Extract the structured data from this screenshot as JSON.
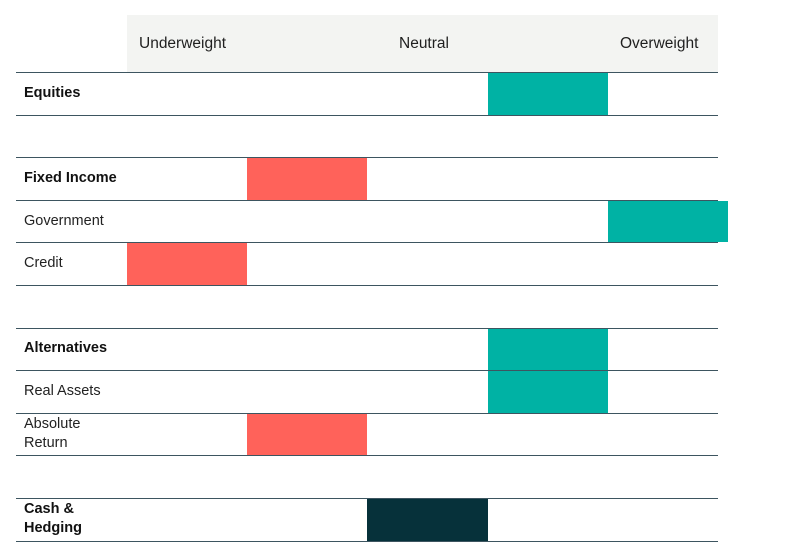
{
  "chart_data": {
    "type": "table",
    "title": "",
    "scale": [
      "Underweight",
      "",
      "",
      "Neutral",
      "",
      "Overweight"
    ],
    "header_labels": [
      {
        "text": "Underweight",
        "position": 1
      },
      {
        "text": "Neutral",
        "position": 3
      },
      {
        "text": "Overweight",
        "position": 5
      }
    ],
    "colors": {
      "underweight": "#ff625a",
      "overweight": "#00b2a4",
      "neutral": "#06313a",
      "header_bg": "#f3f4f2",
      "rule": "#3d5560"
    },
    "rows": [
      {
        "label": "Equities",
        "bold": true,
        "level": 4,
        "color": "overweight"
      },
      {
        "label": "",
        "spacer": true
      },
      {
        "label": "Fixed Income",
        "bold": true,
        "level": 2,
        "color": "underweight"
      },
      {
        "label": "Government",
        "bold": false,
        "level": 5,
        "color": "overweight"
      },
      {
        "label": "Credit",
        "bold": false,
        "level": 1,
        "color": "underweight"
      },
      {
        "label": "",
        "spacer": true
      },
      {
        "label": "Alternatives",
        "bold": true,
        "level": 4,
        "color": "overweight"
      },
      {
        "label": "Real Assets",
        "bold": false,
        "level": 4,
        "color": "overweight"
      },
      {
        "label": "Absolute Return",
        "bold": false,
        "level": 2,
        "color": "underweight"
      },
      {
        "label": "",
        "spacer": true
      },
      {
        "label": "Cash & Hedging",
        "bold": true,
        "level": 3,
        "color": "neutral"
      }
    ]
  }
}
